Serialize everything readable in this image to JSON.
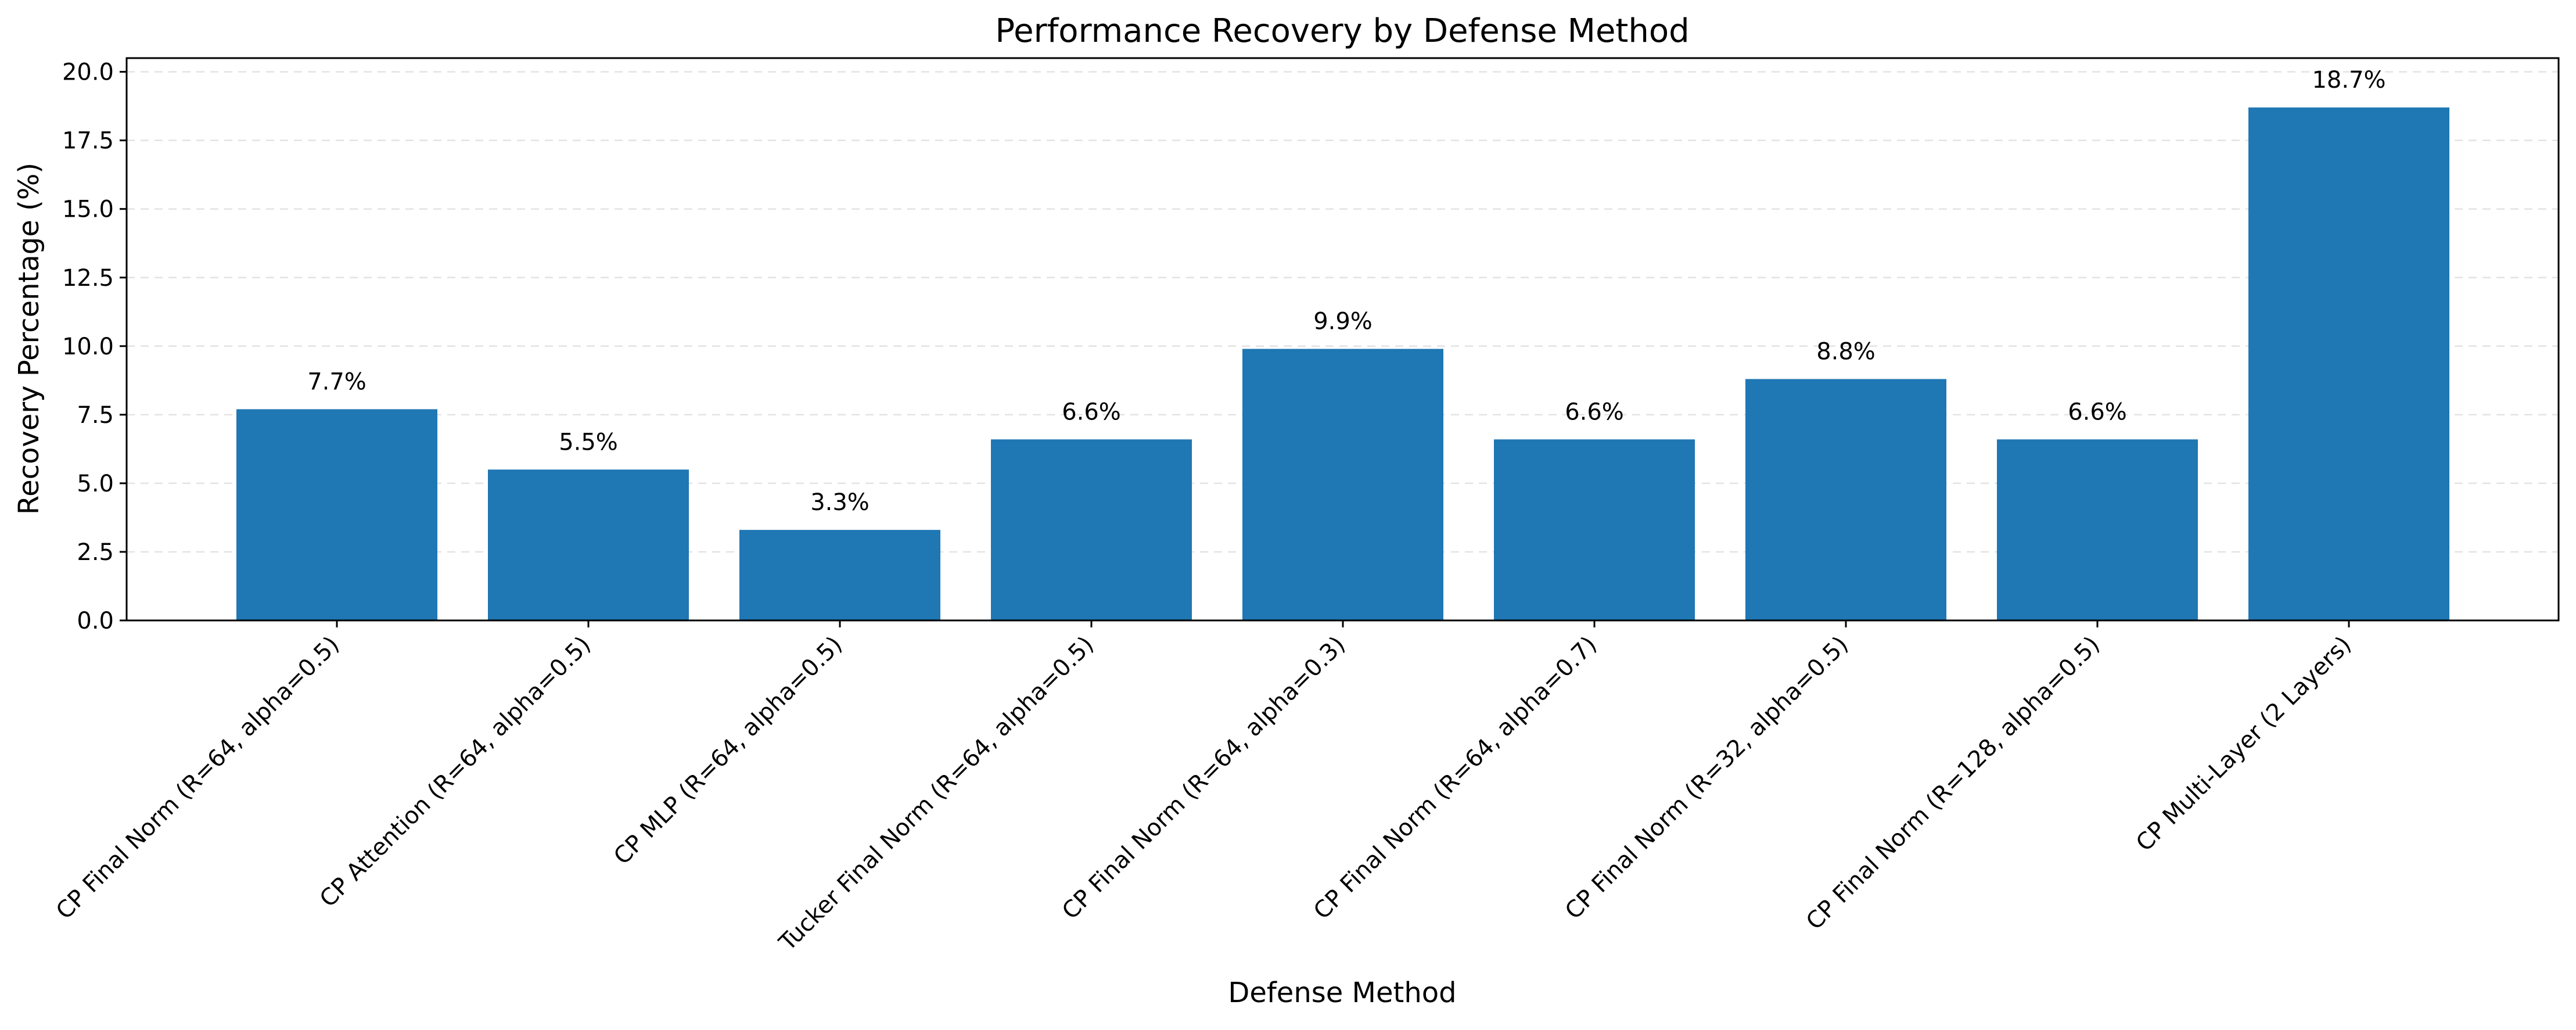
{
  "chart_data": {
    "type": "bar",
    "title": "Performance Recovery by Defense Method",
    "xlabel": "Defense Method",
    "ylabel": "Recovery Percentage (%)",
    "categories": [
      "CP Final Norm (R=64, alpha=0.5)",
      "CP Attention (R=64, alpha=0.5)",
      "CP MLP (R=64, alpha=0.5)",
      "Tucker Final Norm (R=64, alpha=0.5)",
      "CP Final Norm (R=64, alpha=0.3)",
      "CP Final Norm (R=64, alpha=0.7)",
      "CP Final Norm (R=32, alpha=0.5)",
      "CP Final Norm (R=128, alpha=0.5)",
      "CP Multi-Layer (2 Layers)"
    ],
    "values": [
      7.7,
      5.5,
      3.3,
      6.6,
      9.9,
      6.6,
      8.8,
      6.6,
      18.7
    ],
    "data_labels": [
      "7.7%",
      "5.5%",
      "3.3%",
      "6.6%",
      "9.9%",
      "6.6%",
      "8.8%",
      "6.6%",
      "18.7%"
    ],
    "ylim": [
      0,
      20.5
    ],
    "yticks": [
      0.0,
      2.5,
      5.0,
      7.5,
      10.0,
      12.5,
      15.0,
      17.5,
      20.0
    ],
    "ytick_labels": [
      "0.0",
      "2.5",
      "5.0",
      "7.5",
      "10.0",
      "12.5",
      "15.0",
      "17.5",
      "20.0"
    ],
    "grid": "y-dashed",
    "bar_color": "#1f77b4"
  }
}
